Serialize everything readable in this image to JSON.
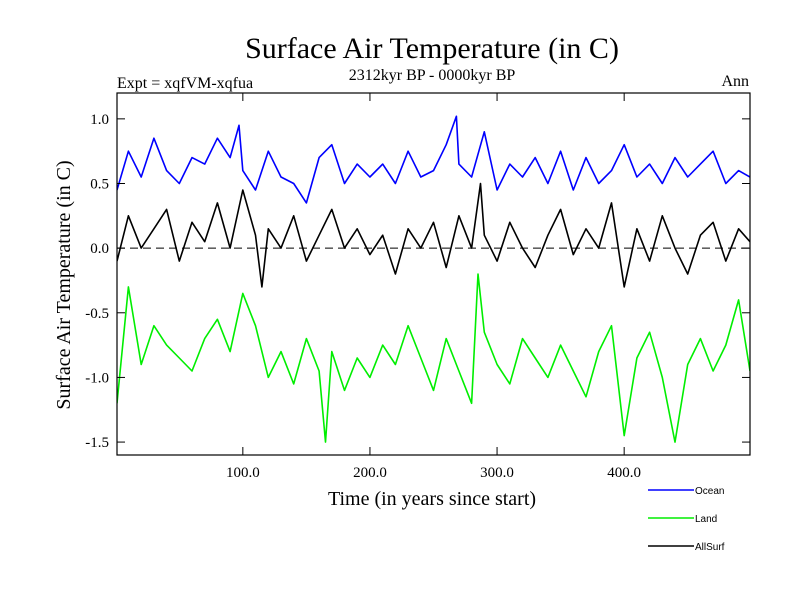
{
  "chart_data": {
    "type": "line",
    "title": "Surface Air Temperature (in C)",
    "subtitle": "2312kyr BP - 0000kyr BP",
    "expt_label": "Expt = xqfVM-xqfua",
    "season_label": "Ann",
    "xlabel": "Time (in years since start)",
    "ylabel": "Surface Air Temperature (in C)",
    "xlim": [
      1,
      499
    ],
    "ylim": [
      -1.6,
      1.2
    ],
    "xticks": [
      100,
      200,
      300,
      400
    ],
    "xtick_labels": [
      "100.0",
      "200.0",
      "300.0",
      "400.0"
    ],
    "yticks": [
      1.0,
      0.5,
      0.0,
      -0.5,
      -1.0,
      -1.5
    ],
    "ytick_labels": [
      "1.0",
      "0.5",
      "0.0",
      "-0.5",
      "-1.0",
      "-1.5"
    ],
    "zero_line": "dashed",
    "legend_position": "bottom-right",
    "series": [
      {
        "name": "Ocean",
        "color": "#0000ff",
        "x": [
          1,
          10,
          20,
          30,
          40,
          50,
          60,
          70,
          80,
          90,
          97,
          100,
          110,
          120,
          130,
          140,
          150,
          160,
          170,
          180,
          190,
          200,
          210,
          220,
          230,
          240,
          250,
          260,
          268,
          270,
          280,
          290,
          300,
          310,
          320,
          330,
          340,
          350,
          360,
          370,
          380,
          390,
          400,
          410,
          420,
          430,
          440,
          450,
          460,
          470,
          480,
          490,
          499
        ],
        "values": [
          0.45,
          0.75,
          0.55,
          0.85,
          0.6,
          0.5,
          0.7,
          0.65,
          0.85,
          0.7,
          0.95,
          0.6,
          0.45,
          0.75,
          0.55,
          0.5,
          0.35,
          0.7,
          0.8,
          0.5,
          0.65,
          0.55,
          0.65,
          0.5,
          0.75,
          0.55,
          0.6,
          0.8,
          1.02,
          0.65,
          0.55,
          0.9,
          0.45,
          0.65,
          0.55,
          0.7,
          0.5,
          0.75,
          0.45,
          0.7,
          0.5,
          0.6,
          0.8,
          0.55,
          0.65,
          0.5,
          0.7,
          0.55,
          0.65,
          0.75,
          0.5,
          0.6,
          0.55
        ]
      },
      {
        "name": "Land",
        "color": "#00ee00",
        "x": [
          1,
          10,
          20,
          30,
          40,
          50,
          60,
          70,
          80,
          90,
          100,
          110,
          120,
          130,
          140,
          150,
          160,
          165,
          170,
          180,
          190,
          200,
          210,
          220,
          230,
          240,
          250,
          260,
          270,
          280,
          285,
          290,
          300,
          310,
          320,
          330,
          340,
          350,
          360,
          370,
          380,
          390,
          400,
          410,
          420,
          430,
          440,
          450,
          460,
          470,
          480,
          490,
          499
        ],
        "values": [
          -1.2,
          -0.3,
          -0.9,
          -0.6,
          -0.75,
          -0.85,
          -0.95,
          -0.7,
          -0.55,
          -0.8,
          -0.35,
          -0.6,
          -1.0,
          -0.8,
          -1.05,
          -0.7,
          -0.95,
          -1.5,
          -0.8,
          -1.1,
          -0.85,
          -1.0,
          -0.75,
          -0.9,
          -0.6,
          -0.85,
          -1.1,
          -0.7,
          -0.95,
          -1.2,
          -0.2,
          -0.65,
          -0.9,
          -1.05,
          -0.7,
          -0.85,
          -1.0,
          -0.75,
          -0.95,
          -1.15,
          -0.8,
          -0.6,
          -1.45,
          -0.85,
          -0.65,
          -1.0,
          -1.5,
          -0.9,
          -0.7,
          -0.95,
          -0.75,
          -0.4,
          -0.95
        ]
      },
      {
        "name": "AllSurf",
        "color": "#000000",
        "x": [
          1,
          10,
          20,
          30,
          40,
          50,
          60,
          70,
          80,
          90,
          100,
          110,
          115,
          120,
          130,
          140,
          150,
          160,
          170,
          180,
          190,
          200,
          210,
          220,
          230,
          240,
          250,
          260,
          270,
          280,
          287,
          290,
          300,
          310,
          320,
          330,
          340,
          350,
          360,
          370,
          380,
          390,
          400,
          410,
          420,
          430,
          440,
          450,
          460,
          470,
          480,
          490,
          499
        ],
        "values": [
          -0.1,
          0.25,
          0.0,
          0.15,
          0.3,
          -0.1,
          0.2,
          0.05,
          0.35,
          0.0,
          0.45,
          0.1,
          -0.3,
          0.15,
          0.0,
          0.25,
          -0.1,
          0.1,
          0.3,
          0.0,
          0.15,
          -0.05,
          0.1,
          -0.2,
          0.15,
          0.0,
          0.2,
          -0.15,
          0.25,
          0.0,
          0.5,
          0.1,
          -0.1,
          0.2,
          0.0,
          -0.15,
          0.1,
          0.3,
          -0.05,
          0.15,
          0.0,
          0.35,
          -0.3,
          0.15,
          -0.1,
          0.25,
          0.0,
          -0.2,
          0.1,
          0.2,
          -0.1,
          0.15,
          0.05
        ]
      }
    ]
  }
}
